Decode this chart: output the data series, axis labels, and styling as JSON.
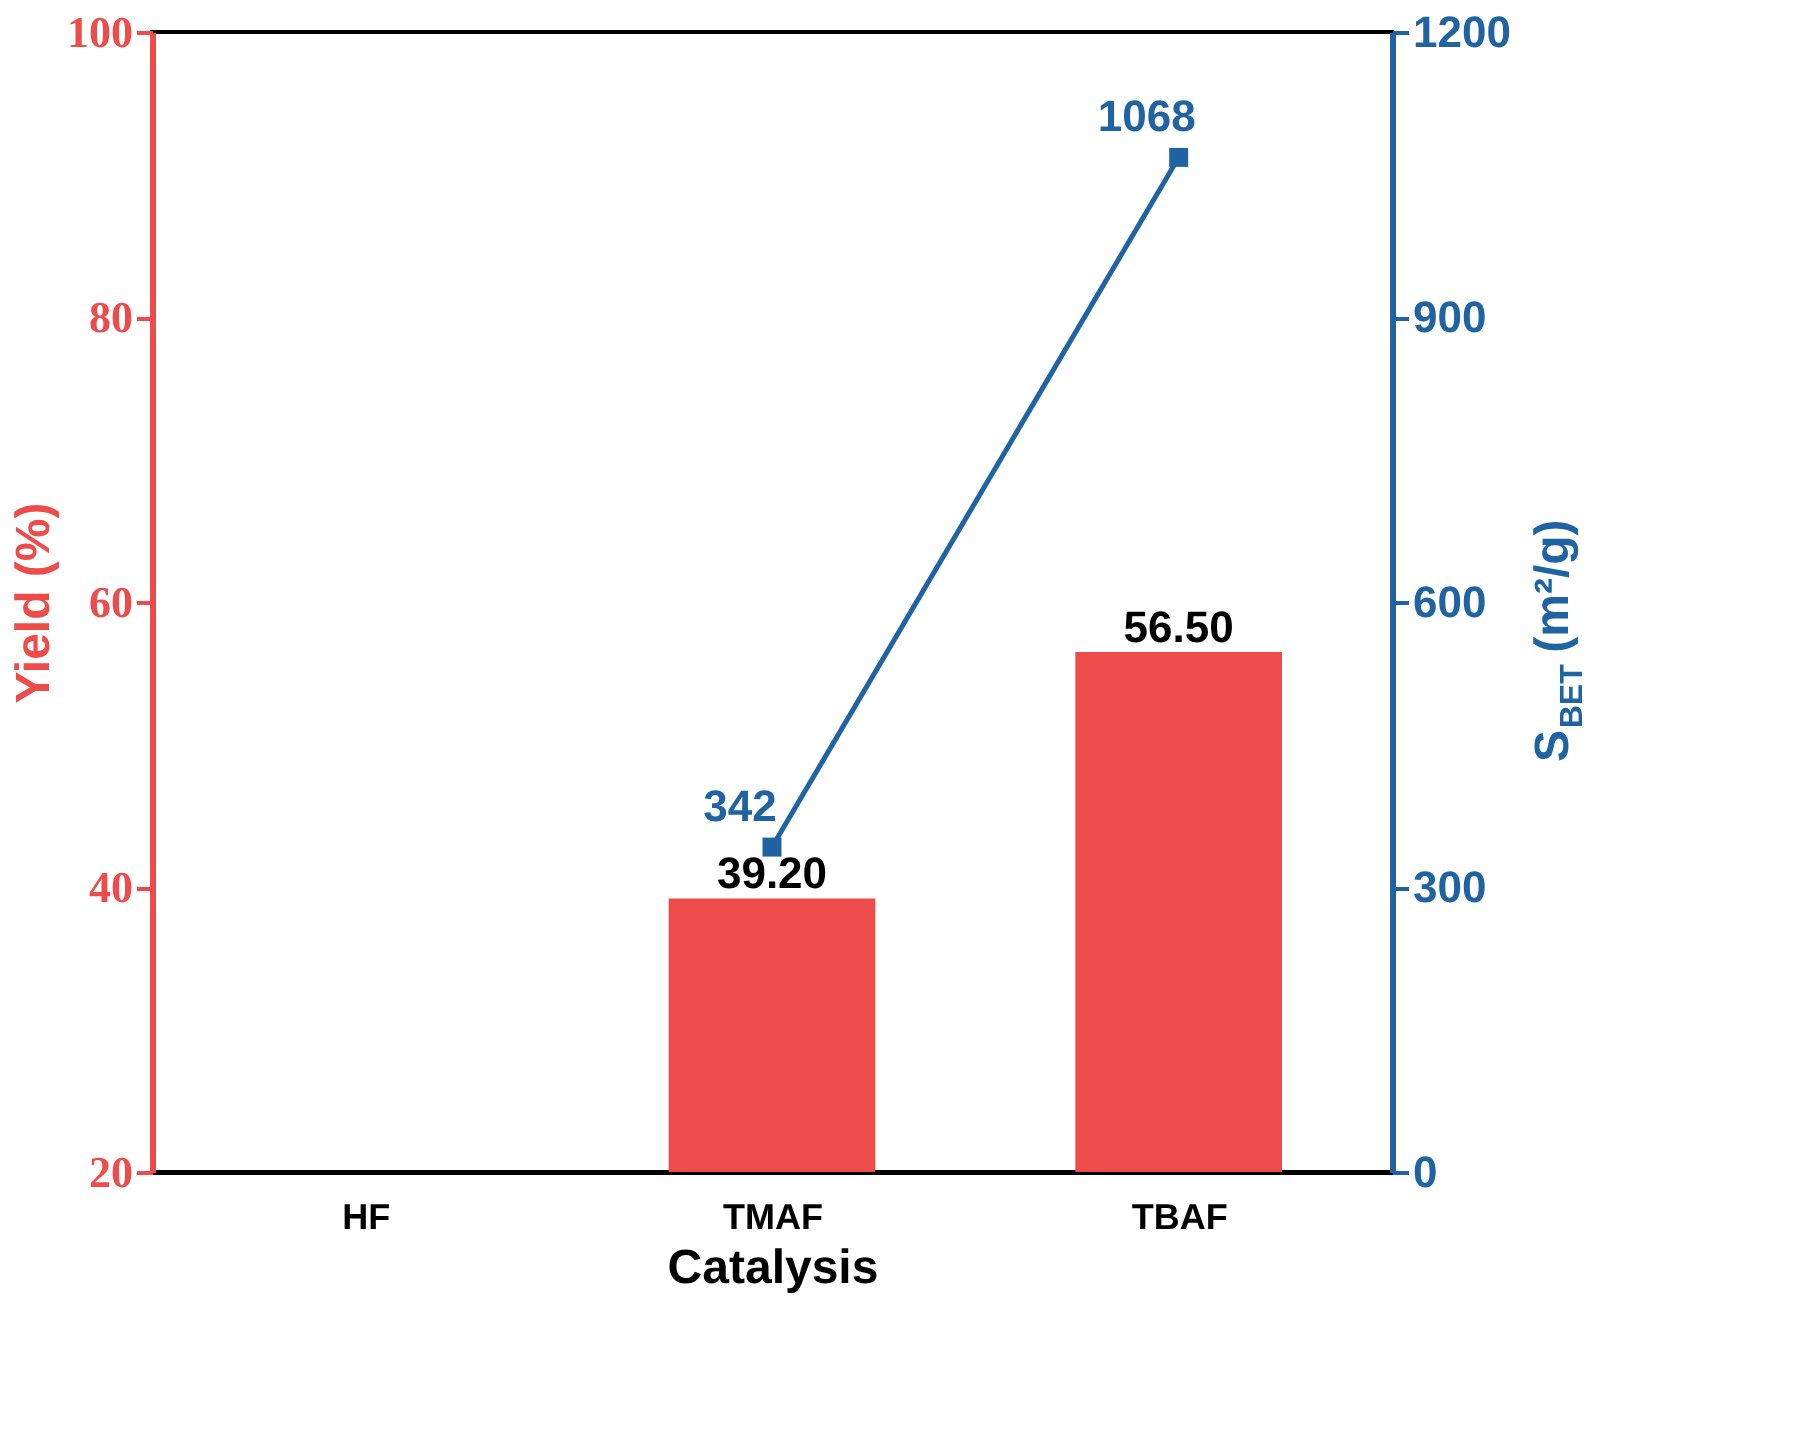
{
  "chart_data": {
    "type": "bar",
    "xlabel": "Catalysis",
    "ylabel": "Yield (%)",
    "y2label": "S$_{BET}$ (m²/g)",
    "categories": [
      "HF",
      "TMAF",
      "TBAF"
    ],
    "series": [
      {
        "color": "#ee4b4b",
        "values": [
          null,
          39.2,
          56.5
        ],
        "value_labels": [
          null,
          "39.20",
          "56.50"
        ]
      },
      {
        "type": "line",
        "axis": "y2",
        "color": "#1f63a3",
        "values": [
          null,
          342,
          1068
        ],
        "value_labels": [
          null,
          "342",
          "1068"
        ],
        "marker": "square"
      }
    ],
    "ylim": [
      20,
      100
    ],
    "yticks": [
      20,
      40,
      60,
      80,
      100
    ],
    "y2lim": [
      0,
      1200
    ],
    "y2ticks": [
      0,
      300,
      600,
      900,
      1200
    ]
  }
}
